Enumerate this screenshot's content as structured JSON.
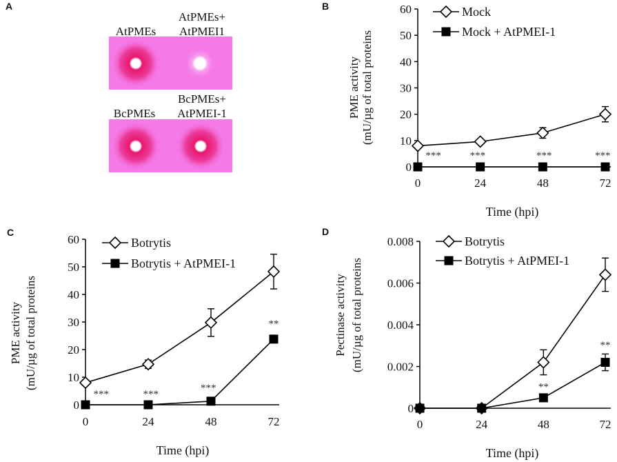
{
  "panel_a": {
    "letter": "A",
    "top_labels": [
      "AtPMEs",
      "AtPMEs+",
      "AtPMEI1"
    ],
    "bottom_labels": [
      "BcPMEs",
      "BcPMEs+",
      "AtPMEI-1"
    ],
    "gel_color": "#f57ae8",
    "halo_color": "#e8186e"
  },
  "chart_data": [
    {
      "letter": "B",
      "type": "line",
      "xlabel": "Time (hpi)",
      "ylabel": [
        "PME activity",
        "(mU/µg of total proteins"
      ],
      "x": [
        0,
        24,
        48,
        72
      ],
      "xticks": [
        "0",
        "24",
        "48",
        "72"
      ],
      "ylim": [
        0,
        60
      ],
      "yticks": [
        "0",
        "10",
        "20",
        "30",
        "40",
        "50",
        "60"
      ],
      "ytick_values": [
        0,
        10,
        20,
        30,
        40,
        50,
        60
      ],
      "grid": false,
      "legend": "top-left",
      "series": [
        {
          "name": "Mock",
          "marker": "open-diamond",
          "values": [
            8,
            9.6,
            12.9,
            20
          ],
          "err": [
            1,
            0.8,
            2,
            2.9
          ]
        },
        {
          "name": "Mock + AtPMEI-1",
          "marker": "filled-square",
          "values": [
            0,
            0,
            0,
            0
          ],
          "err": [
            0,
            0,
            0,
            0
          ]
        }
      ],
      "annotations": [
        {
          "text": "***",
          "x": 6,
          "y": 5
        },
        {
          "text": "***",
          "x": 23,
          "y": 5
        },
        {
          "text": "***",
          "x": 48.5,
          "y": 5
        },
        {
          "text": "***",
          "x": 71,
          "y": 5
        }
      ]
    },
    {
      "letter": "C",
      "type": "line",
      "xlabel": "Time (hpi)",
      "ylabel": [
        "PME activity",
        "(mU/µg of total proteins"
      ],
      "x": [
        0,
        24,
        48,
        72
      ],
      "xticks": [
        "0",
        "24",
        "48",
        "72"
      ],
      "ylim": [
        0,
        60
      ],
      "yticks": [
        "0",
        "10",
        "20",
        "30",
        "40",
        "50",
        "60"
      ],
      "ytick_values": [
        0,
        10,
        20,
        30,
        40,
        50,
        60
      ],
      "grid": false,
      "legend": "top-left",
      "series": [
        {
          "name": "Botrytis",
          "marker": "open-diamond",
          "values": [
            8,
            14.7,
            29.8,
            48.3
          ],
          "err": [
            1,
            1.5,
            5,
            6.3
          ]
        },
        {
          "name": "Botrytis + AtPMEI-1",
          "marker": "filled-square",
          "values": [
            0,
            0,
            1.3,
            23.8
          ],
          "err": [
            0,
            0,
            0,
            1
          ]
        }
      ],
      "annotations": [
        {
          "text": "***",
          "x": 6,
          "y": 4.5
        },
        {
          "text": "***",
          "x": 25,
          "y": 4.5
        },
        {
          "text": "***",
          "x": 47,
          "y": 6.8
        },
        {
          "text": "**",
          "x": 72,
          "y": 30
        }
      ]
    },
    {
      "letter": "D",
      "type": "line",
      "xlabel": "Time (hpi)",
      "ylabel": [
        "Pectinase activity",
        "(mU/µg of total proteins"
      ],
      "x": [
        0,
        24,
        48,
        72
      ],
      "xticks": [
        "0",
        "24",
        "48",
        "72"
      ],
      "ylim": [
        0,
        0.008
      ],
      "yticks": [
        "0",
        "0.002",
        "0.004",
        "0.006",
        "0.008"
      ],
      "ytick_values": [
        0,
        0.002,
        0.004,
        0.006,
        0.008
      ],
      "grid": false,
      "legend": "top-left",
      "series": [
        {
          "name": "Botrytis",
          "marker": "open-diamond",
          "values": [
            0,
            0,
            0.0022,
            0.0064
          ],
          "err": [
            0,
            0,
            0.0006,
            0.0008
          ]
        },
        {
          "name": "Botrytis + AtPMEI-1",
          "marker": "filled-square",
          "values": [
            0,
            0,
            0.0005,
            0.0022
          ],
          "err": [
            0,
            0,
            0,
            0.0004
          ]
        }
      ],
      "annotations": [
        {
          "text": "**",
          "x": 48,
          "y": 0.0011
        },
        {
          "text": "**",
          "x": 72,
          "y": 0.0031
        }
      ]
    }
  ]
}
